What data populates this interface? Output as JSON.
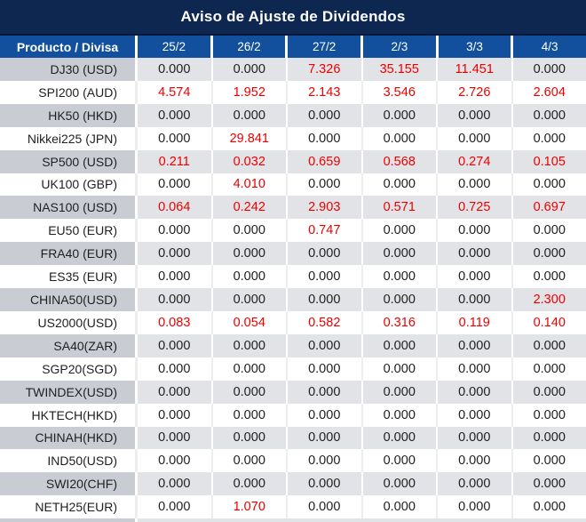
{
  "title": "Aviso de Ajuste de Dividendos",
  "table": {
    "product_header": "Producto / Divisa",
    "date_columns": [
      "25/2",
      "26/2",
      "27/2",
      "2/3",
      "3/3",
      "4/3"
    ],
    "rows": [
      {
        "product": "DJ30 (USD)",
        "values": [
          "0.000",
          "0.000",
          "7.326",
          "35.155",
          "11.451",
          "0.000"
        ]
      },
      {
        "product": "SPI200 (AUD)",
        "values": [
          "4.574",
          "1.952",
          "2.143",
          "3.546",
          "2.726",
          "2.604"
        ]
      },
      {
        "product": "HK50 (HKD)",
        "values": [
          "0.000",
          "0.000",
          "0.000",
          "0.000",
          "0.000",
          "0.000"
        ]
      },
      {
        "product": "Nikkei225 (JPN)",
        "values": [
          "0.000",
          "29.841",
          "0.000",
          "0.000",
          "0.000",
          "0.000"
        ]
      },
      {
        "product": "SP500 (USD)",
        "values": [
          "0.211",
          "0.032",
          "0.659",
          "0.568",
          "0.274",
          "0.105"
        ]
      },
      {
        "product": "UK100 (GBP)",
        "values": [
          "0.000",
          "4.010",
          "0.000",
          "0.000",
          "0.000",
          "0.000"
        ]
      },
      {
        "product": "NAS100 (USD)",
        "values": [
          "0.064",
          "0.242",
          "2.903",
          "0.571",
          "0.725",
          "0.697"
        ]
      },
      {
        "product": "EU50 (EUR)",
        "values": [
          "0.000",
          "0.000",
          "0.747",
          "0.000",
          "0.000",
          "0.000"
        ]
      },
      {
        "product": "FRA40 (EUR)",
        "values": [
          "0.000",
          "0.000",
          "0.000",
          "0.000",
          "0.000",
          "0.000"
        ]
      },
      {
        "product": "ES35 (EUR)",
        "values": [
          "0.000",
          "0.000",
          "0.000",
          "0.000",
          "0.000",
          "0.000"
        ]
      },
      {
        "product": "CHINA50(USD)",
        "values": [
          "0.000",
          "0.000",
          "0.000",
          "0.000",
          "0.000",
          "2.300"
        ]
      },
      {
        "product": "US2000(USD)",
        "values": [
          "0.083",
          "0.054",
          "0.582",
          "0.316",
          "0.119",
          "0.140"
        ]
      },
      {
        "product": "SA40(ZAR)",
        "values": [
          "0.000",
          "0.000",
          "0.000",
          "0.000",
          "0.000",
          "0.000"
        ]
      },
      {
        "product": "SGP20(SGD)",
        "values": [
          "0.000",
          "0.000",
          "0.000",
          "0.000",
          "0.000",
          "0.000"
        ]
      },
      {
        "product": "TWINDEX(USD)",
        "values": [
          "0.000",
          "0.000",
          "0.000",
          "0.000",
          "0.000",
          "0.000"
        ]
      },
      {
        "product": "HKTECH(HKD)",
        "values": [
          "0.000",
          "0.000",
          "0.000",
          "0.000",
          "0.000",
          "0.000"
        ]
      },
      {
        "product": "CHINAH(HKD)",
        "values": [
          "0.000",
          "0.000",
          "0.000",
          "0.000",
          "0.000",
          "0.000"
        ]
      },
      {
        "product": "IND50(USD)",
        "values": [
          "0.000",
          "0.000",
          "0.000",
          "0.000",
          "0.000",
          "0.000"
        ]
      },
      {
        "product": "SWI20(CHF)",
        "values": [
          "0.000",
          "0.000",
          "0.000",
          "0.000",
          "0.000",
          "0.000"
        ]
      },
      {
        "product": "NETH25(EUR)",
        "values": [
          "0.000",
          "1.070",
          "0.000",
          "0.000",
          "0.000",
          "0.000"
        ]
      }
    ],
    "zero_value": "0.000"
  },
  "colors": {
    "title_bg": "#0e2750",
    "title_separator": "#07183a",
    "header_bg": "#12509e",
    "header_text": "#ffffff",
    "stripe_product_bg": "#c9cdd3",
    "stripe_value_bg": "#e2e3e6",
    "value_zero_text": "#1f1f1f",
    "value_nonzero_text": "#ee0000"
  }
}
